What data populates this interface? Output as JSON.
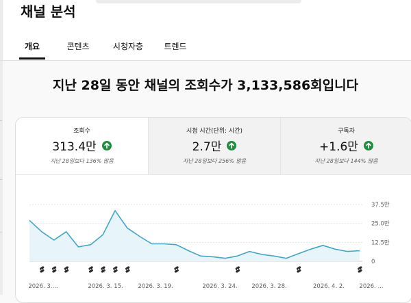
{
  "page": {
    "title": "채널 분석",
    "tabs": [
      {
        "label": "개요",
        "active": true
      },
      {
        "label": "콘텐츠",
        "active": false
      },
      {
        "label": "시청자층",
        "active": false
      },
      {
        "label": "트렌드",
        "active": false
      }
    ],
    "headline": "지난 28일 동안 채널의 조회수가 3,133,586회입니다"
  },
  "metrics": [
    {
      "label": "조회수",
      "value": "313.4만",
      "sub": "지난 28일보다 136% 많음",
      "trend": "up"
    },
    {
      "label": "시청 시간(단위: 시간)",
      "value": "2.7만",
      "sub": "지난 28일보다 256% 많음",
      "trend": "up"
    },
    {
      "label": "구독자",
      "value": "+1.6만",
      "sub": "지난 28일보다 144% 많음",
      "trend": "up"
    }
  ],
  "colors": {
    "accent_line": "#3ea6c6",
    "area_fill": "#e7f4f9",
    "up_badge": "#1e8e3e"
  },
  "chart_data": {
    "type": "area",
    "x": [
      "2026. 3. 11",
      "2026. 3. 12",
      "2026. 3. 13",
      "2026. 3. 14",
      "2026. 3. 15",
      "2026. 3. 16",
      "2026. 3. 17",
      "2026. 3. 18",
      "2026. 3. 19",
      "2026. 3. 20",
      "2026. 3. 21",
      "2026. 3. 22",
      "2026. 3. 23",
      "2026. 3. 24",
      "2026. 3. 25",
      "2026. 3. 26",
      "2026. 3. 27",
      "2026. 3. 28",
      "2026. 3. 29",
      "2026. 3. 30",
      "2026. 3. 31",
      "2026. 4. 1",
      "2026. 4. 2",
      "2026. 4. 3",
      "2026. 4. 4",
      "2026. 4. 5",
      "2026. 4. 6",
      "2026. 4. 7"
    ],
    "series": [
      {
        "values": [
          27.0,
          19.5,
          14.0,
          19.5,
          9.5,
          11.0,
          17.5,
          33.5,
          22.0,
          16.5,
          11.5,
          11.5,
          11.0,
          7.0,
          3.5,
          3.0,
          2.0,
          3.5,
          6.5,
          4.5,
          3.5,
          2.0,
          5.0,
          8.0,
          10.5,
          8.0,
          6.5,
          7.0
        ]
      }
    ],
    "x_tick_labels": [
      "2026. 3....",
      "2026. 3. 15.",
      "2026. 3. 19.",
      "2026. 3. 24.",
      "2026. 3. 28.",
      "2026. 4. 2.",
      "2026. ..."
    ],
    "y_tick_labels": [
      "37.5만",
      "25.0만",
      "12.5만",
      "0"
    ],
    "yticks": [
      37.5,
      25.0,
      12.5,
      0
    ],
    "ylim": [
      0,
      37.5
    ],
    "grid": true,
    "xlabel": "",
    "ylabel": ""
  },
  "publish_markers": {
    "icon": "shorts-icon",
    "days": [
      1,
      2,
      3,
      5,
      6,
      7,
      8,
      12,
      17,
      22,
      27
    ]
  }
}
